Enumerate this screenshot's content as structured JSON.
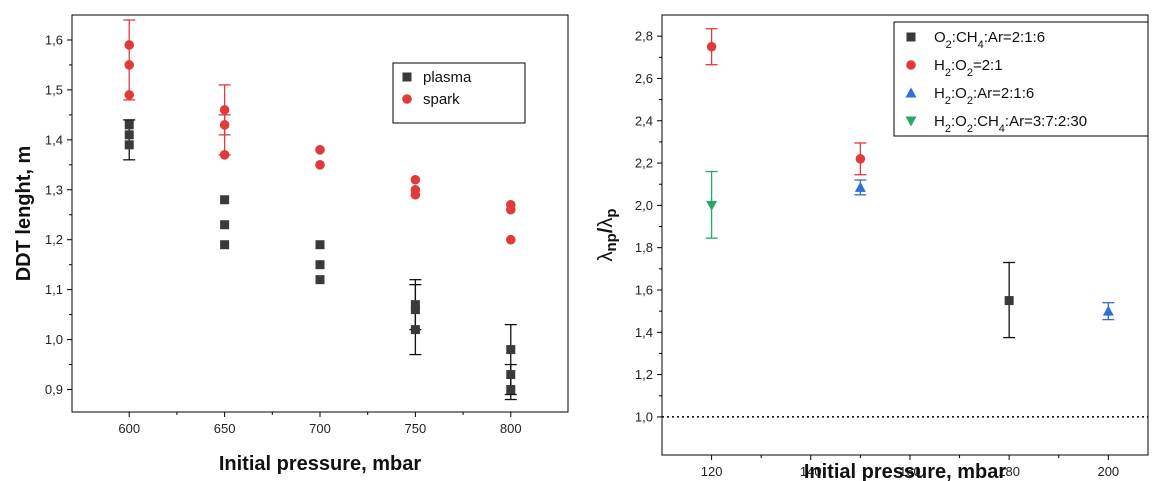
{
  "chart_data": [
    {
      "type": "scatter",
      "title": "",
      "xlabel": "Initial pressure, mbar",
      "ylabel": "DDT lenght, m",
      "xlim": [
        570,
        830
      ],
      "ylim": [
        0.855,
        1.65
      ],
      "xticks": [
        600,
        650,
        700,
        750,
        800
      ],
      "yticks": [
        0.9,
        1.0,
        1.1,
        1.2,
        1.3,
        1.4,
        1.5,
        1.6
      ],
      "xtick_labels": [
        "600",
        "650",
        "700",
        "750",
        "800"
      ],
      "ytick_labels": [
        "0,9",
        "1,0",
        "1,1",
        "1,2",
        "1,3",
        "1,4",
        "1,5",
        "1,6"
      ],
      "legend_position": "upper-right",
      "series": [
        {
          "name": "plasma",
          "color": "#3a3a3a",
          "marker": "square",
          "points": [
            [
              600,
              1.43
            ],
            [
              600,
              1.41
            ],
            [
              600,
              1.39
            ],
            [
              650,
              1.28
            ],
            [
              650,
              1.23
            ],
            [
              650,
              1.19
            ],
            [
              700,
              1.19
            ],
            [
              700,
              1.15
            ],
            [
              700,
              1.12
            ],
            [
              750,
              1.07
            ],
            [
              750,
              1.06
            ],
            [
              750,
              1.02
            ],
            [
              800,
              0.98
            ],
            [
              800,
              0.93
            ],
            [
              800,
              0.9
            ]
          ],
          "errorbars": [
            {
              "x": 600,
              "low": 1.36,
              "high": 1.44
            },
            {
              "x": 750,
              "low": 0.97,
              "high": 1.12
            },
            {
              "x": 750,
              "low": 1.02,
              "high": 1.11
            },
            {
              "x": 800,
              "low": 0.88,
              "high": 1.03
            },
            {
              "x": 800,
              "low": 0.89,
              "high": 0.95
            }
          ]
        },
        {
          "name": "spark",
          "color": "#e03a3a",
          "marker": "circle",
          "points": [
            [
              600,
              1.59
            ],
            [
              600,
              1.55
            ],
            [
              600,
              1.49
            ],
            [
              650,
              1.46
            ],
            [
              650,
              1.43
            ],
            [
              650,
              1.37
            ],
            [
              700,
              1.38
            ],
            [
              700,
              1.35
            ],
            [
              750,
              1.32
            ],
            [
              750,
              1.3
            ],
            [
              750,
              1.29
            ],
            [
              800,
              1.27
            ],
            [
              800,
              1.26
            ],
            [
              800,
              1.2
            ]
          ],
          "errorbars": [
            {
              "x": 600,
              "low": 1.48,
              "high": 1.64
            },
            {
              "x": 650,
              "low": 1.37,
              "high": 1.51
            },
            {
              "x": 650,
              "low": 1.41,
              "high": 1.45
            }
          ]
        }
      ]
    },
    {
      "type": "scatter",
      "title": "",
      "xlabel": "Initial pressure, mbar",
      "ylabel": "λnp/λp",
      "ylabel_parts": {
        "base1": "λ",
        "sub1": "np",
        "slash": "/",
        "base2": "λ",
        "sub2": "p"
      },
      "xlim": [
        110,
        208
      ],
      "ylim": [
        0.82,
        2.9
      ],
      "xticks": [
        120,
        140,
        160,
        180,
        200
      ],
      "yticks": [
        1.0,
        1.2,
        1.4,
        1.6,
        1.8,
        2.0,
        2.2,
        2.4,
        2.6,
        2.8
      ],
      "xtick_labels": [
        "120",
        "140",
        "160",
        "180",
        "200"
      ],
      "ytick_labels": [
        "1,0",
        "1,2",
        "1,4",
        "1,6",
        "1,8",
        "2,0",
        "2,2",
        "2,4",
        "2,6",
        "2,8"
      ],
      "reference_line": {
        "y": 1.0,
        "style": "dotted"
      },
      "legend_position": "upper-right",
      "series": [
        {
          "name": "O2:CH4:Ar=2:1:6",
          "legend": {
            "parts": [
              "O",
              "2",
              ":CH",
              "4",
              ":Ar=2:1:6"
            ]
          },
          "color": "#3a3a3a",
          "marker": "square",
          "points": [
            [
              180,
              1.55
            ]
          ],
          "errorbars": [
            {
              "x": 180,
              "low": 1.375,
              "high": 1.73
            }
          ]
        },
        {
          "name": "H2:O2=2:1",
          "legend": {
            "parts": [
              "H",
              "2",
              ":O",
              "2",
              "=2:1"
            ]
          },
          "color": "#e03a3a",
          "marker": "circle",
          "points": [
            [
              120,
              2.75
            ],
            [
              150,
              2.22
            ]
          ],
          "errorbars": [
            {
              "x": 120,
              "low": 2.665,
              "high": 2.835
            },
            {
              "x": 150,
              "low": 2.145,
              "high": 2.295
            }
          ]
        },
        {
          "name": "H2:O2:Ar=2:1:6",
          "legend": {
            "parts": [
              "H",
              "2",
              ":O",
              "2",
              ":Ar=2:1:6"
            ]
          },
          "color": "#2f6fd6",
          "marker": "triangle-up",
          "points": [
            [
              150,
              2.085
            ],
            [
              200,
              1.5
            ]
          ],
          "errorbars": [
            {
              "x": 150,
              "low": 2.05,
              "high": 2.12
            },
            {
              "x": 200,
              "low": 1.46,
              "high": 1.54
            }
          ]
        },
        {
          "name": "H2:O2:CH4:Ar=3:7:2:30",
          "legend": {
            "parts": [
              "H",
              "2",
              ":O",
              "2",
              ":CH",
              "4",
              ":Ar=3:7:2:30"
            ]
          },
          "color": "#26a86a",
          "marker": "triangle-down",
          "points": [
            [
              120,
              2.0
            ]
          ],
          "errorbars": [
            {
              "x": 120,
              "low": 1.845,
              "high": 2.16
            }
          ]
        }
      ]
    }
  ]
}
